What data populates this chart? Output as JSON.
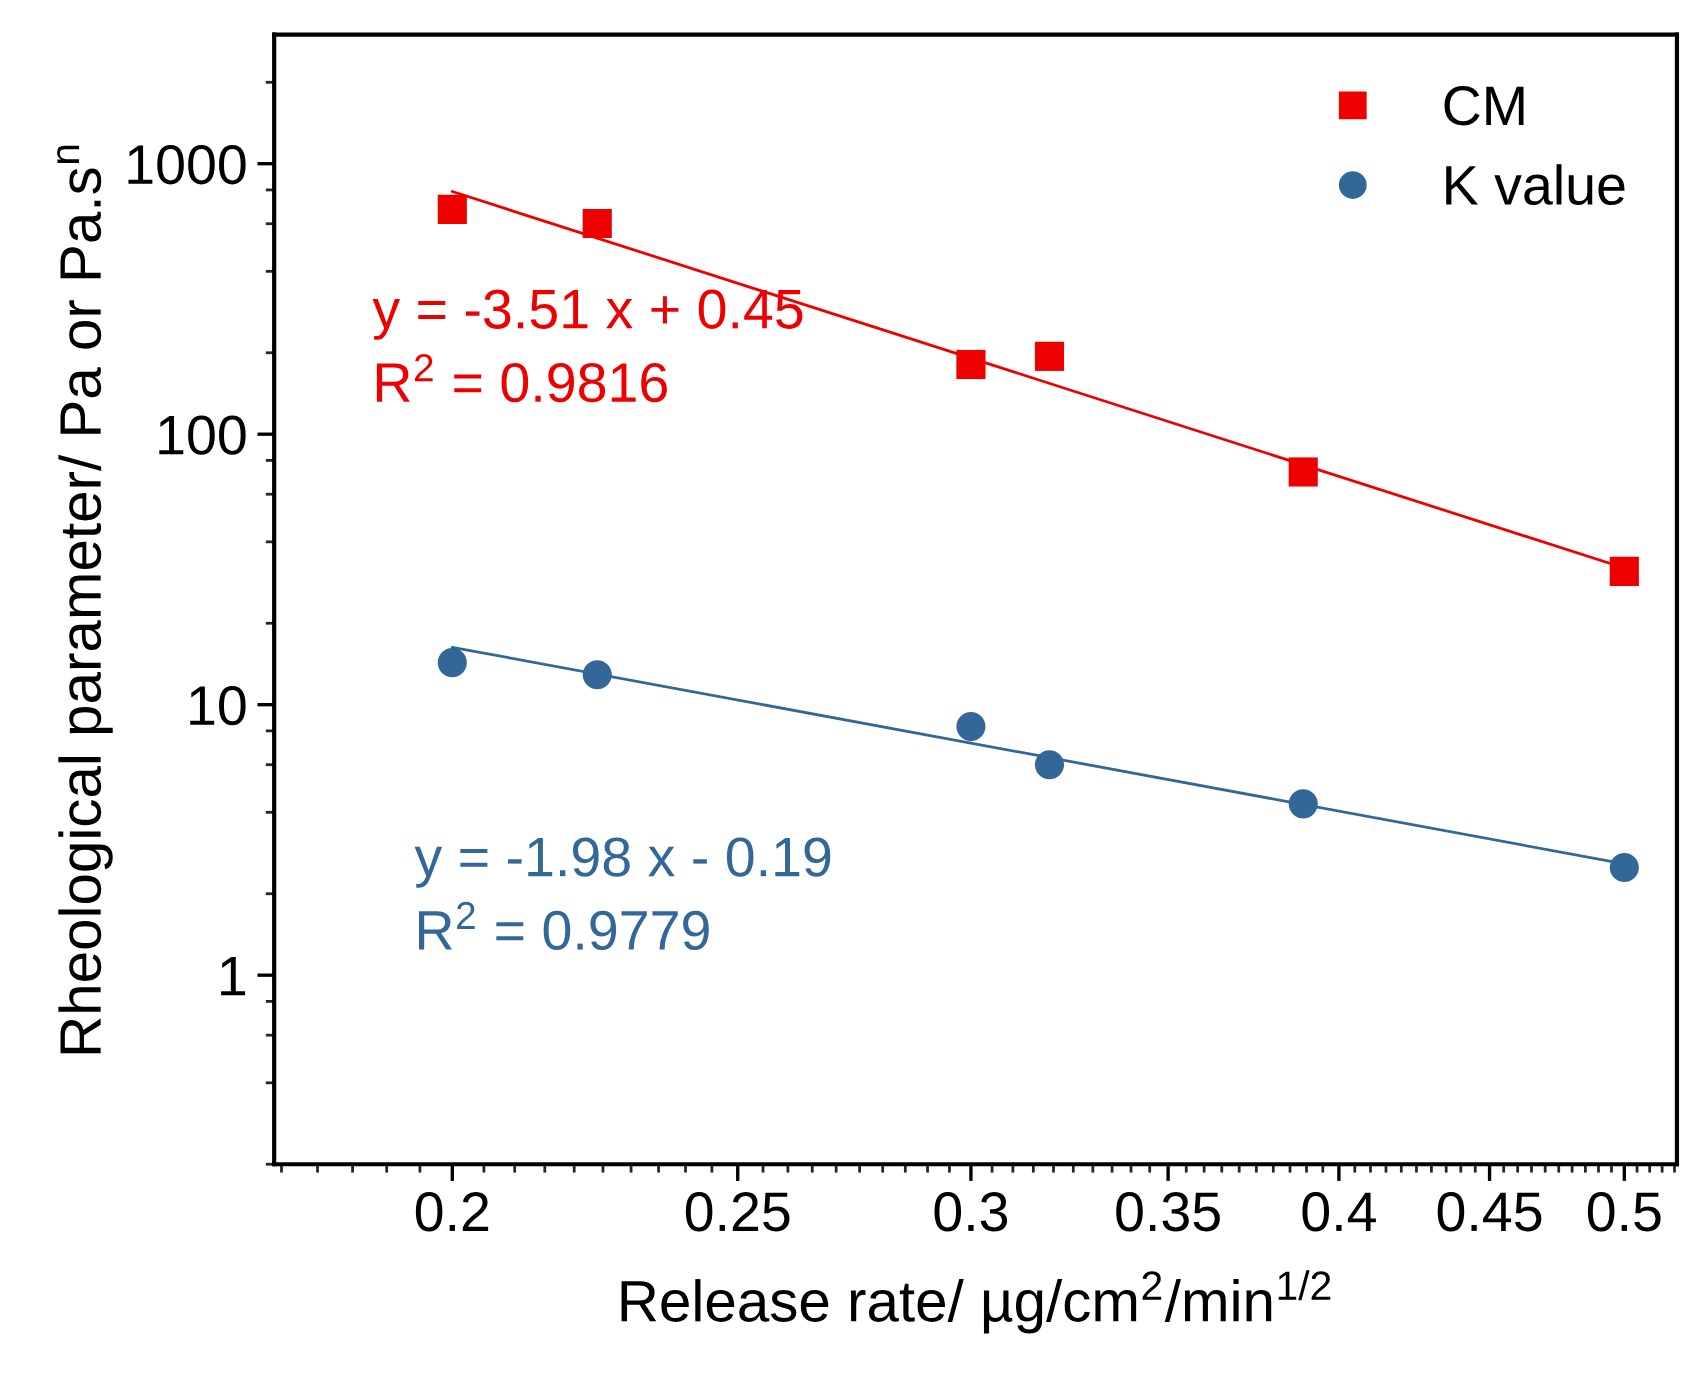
{
  "chart_data": {
    "type": "scatter",
    "xlabel": "Release rate/ µg/cm$^{2}$/min$^{1/2}$",
    "ylabel": "Rheological parameter/ Pa or Pa.s$^{n}$",
    "log": "xy",
    "xlim": [
      0.174,
      0.521
    ],
    "ylim": [
      0.2,
      3000
    ],
    "xticks": [
      0.2,
      0.25,
      0.3,
      0.35,
      0.4,
      0.45,
      0.5
    ],
    "yticks": [
      1,
      10,
      100,
      1000
    ],
    "grid": false,
    "legend": "top right",
    "annotations": [
      "y = -3.51 x + 0.45",
      "R$^{2}$ = 0.9816",
      "y = -1.98 x - 0.19",
      "R$^{2}$ = 0.9779"
    ],
    "series": [
      {
        "name": "CM",
        "marker": "square",
        "color": "#ee0000",
        "x": [
          0.2,
          0.224,
          0.3,
          0.319,
          0.389,
          0.5
        ],
        "values": [
          678,
          601,
          181,
          194,
          72.5,
          31.1
        ]
      },
      {
        "name": "K value",
        "marker": "circle",
        "color": "#336699",
        "x": [
          0.2,
          0.224,
          0.3,
          0.319,
          0.389,
          0.5
        ],
        "values": [
          14.3,
          12.9,
          8.3,
          6.0,
          4.3,
          2.5
        ]
      },
      {
        "type": "line",
        "color": "#ee0000",
        "x": [
          0.2,
          0.5
        ],
        "values": [
          789,
          32
        ]
      },
      {
        "type": "line",
        "color": "#336699",
        "x": [
          0.2,
          0.5
        ],
        "values": [
          16.3,
          2.58
        ]
      }
    ]
  }
}
